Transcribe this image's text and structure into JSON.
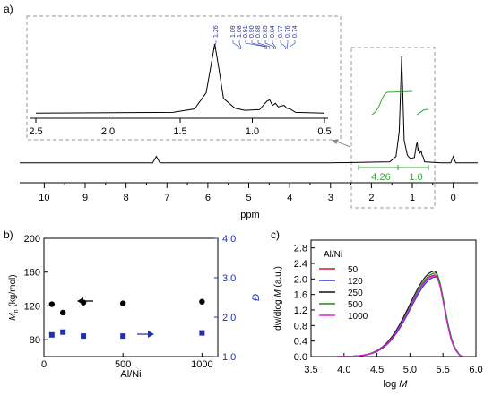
{
  "colors": {
    "axis": "#000000",
    "blue": "#1f2fb4",
    "green": "#3aa53a",
    "box": "#9a9a9a",
    "series_50": "#e0182b",
    "series_120": "#2233dd",
    "series_250": "#111111",
    "series_500": "#1b8a1b",
    "series_1000": "#e020e0"
  },
  "chart_data": [
    {
      "panel": "a)",
      "type": "line",
      "xlabel": "ppm",
      "xlim": [
        10.6,
        -0.6
      ],
      "x_ticks": [
        "10",
        "9",
        "8",
        "7",
        "6",
        "5",
        "4",
        "3",
        "2",
        "1",
        "0"
      ],
      "series": [
        {
          "x": [
            10.6,
            7.35,
            7.26,
            7.17,
            3.0,
            1.55,
            1.4,
            1.32,
            1.29,
            1.26,
            1.23,
            1.2,
            1.12,
            1.05,
            0.95,
            0.9,
            0.88,
            0.86,
            0.84,
            0.82,
            0.78,
            0.76,
            0.74,
            0.7,
            0.3,
            0.06,
            0.0,
            -0.06,
            -0.6
          ],
          "y": [
            0.01,
            0.01,
            0.07,
            0.01,
            0.01,
            0.02,
            0.07,
            0.3,
            0.65,
            1.0,
            0.62,
            0.22,
            0.08,
            0.05,
            0.06,
            0.18,
            0.2,
            0.12,
            0.15,
            0.1,
            0.12,
            0.08,
            0.07,
            0.02,
            0.01,
            0.01,
            0.07,
            0.01,
            0.01
          ]
        }
      ],
      "integrals": [
        "4.26",
        "1.0"
      ],
      "inset": {
        "xlim": [
          2.5,
          0.5
        ],
        "x_ticks": [
          "2.5",
          "2.0",
          "1.5",
          "1.0",
          "0.5"
        ],
        "peak_labels": [
          "1.26",
          "1.09",
          "1.08",
          "0.91",
          "0.90",
          "0.88",
          "0.85",
          "0.84",
          "0.77",
          "0.76",
          "0.74"
        ]
      }
    },
    {
      "panel": "b)",
      "type": "scatter",
      "xlabel": "Al/Ni",
      "ylabel_left": "M",
      "ylabel_left_sub": "n",
      "ylabel_left_unit": "(kg/mol)",
      "ylabel_right": "Đ",
      "xlim": [
        0,
        1100
      ],
      "x_ticks": [
        "0",
        "500",
        "1000"
      ],
      "ylim_left": [
        60,
        200
      ],
      "y_ticks_left": [
        "80",
        "120",
        "160",
        "200"
      ],
      "ylim_right": [
        1.0,
        4.0
      ],
      "y_ticks_right": [
        "1.0",
        "2.0",
        "3.0",
        "4.0"
      ],
      "series": [
        {
          "axis": "left",
          "marker": "circle",
          "x": [
            50,
            120,
            250,
            500,
            1000
          ],
          "y": [
            122,
            112,
            124,
            123,
            125
          ]
        },
        {
          "axis": "right",
          "marker": "square",
          "x": [
            50,
            120,
            250,
            500,
            1000
          ],
          "y": [
            1.55,
            1.62,
            1.52,
            1.52,
            1.6
          ]
        }
      ]
    },
    {
      "panel": "c)",
      "type": "line",
      "xlabel": "log M",
      "ylabel": "dw/dlog M (a.u.)",
      "xlim": [
        3.5,
        6.0
      ],
      "x_ticks": [
        "3.5",
        "4.0",
        "4.5",
        "5.0",
        "5.5",
        "6.0"
      ],
      "ylim": [
        0,
        3.0
      ],
      "y_ticks": [
        "0.0",
        "0.4",
        "0.8",
        "1.2",
        "1.6",
        "2.0",
        "2.4",
        "2.8"
      ],
      "legend_title": "Al/Ni",
      "legend_position": "top-left",
      "series": [
        {
          "name": "50",
          "peak": 2.1
        },
        {
          "name": "120",
          "peak": 2.05
        },
        {
          "name": "250",
          "peak": 2.2
        },
        {
          "name": "500",
          "peak": 2.15
        },
        {
          "name": "1000",
          "peak": 2.08
        }
      ]
    }
  ]
}
